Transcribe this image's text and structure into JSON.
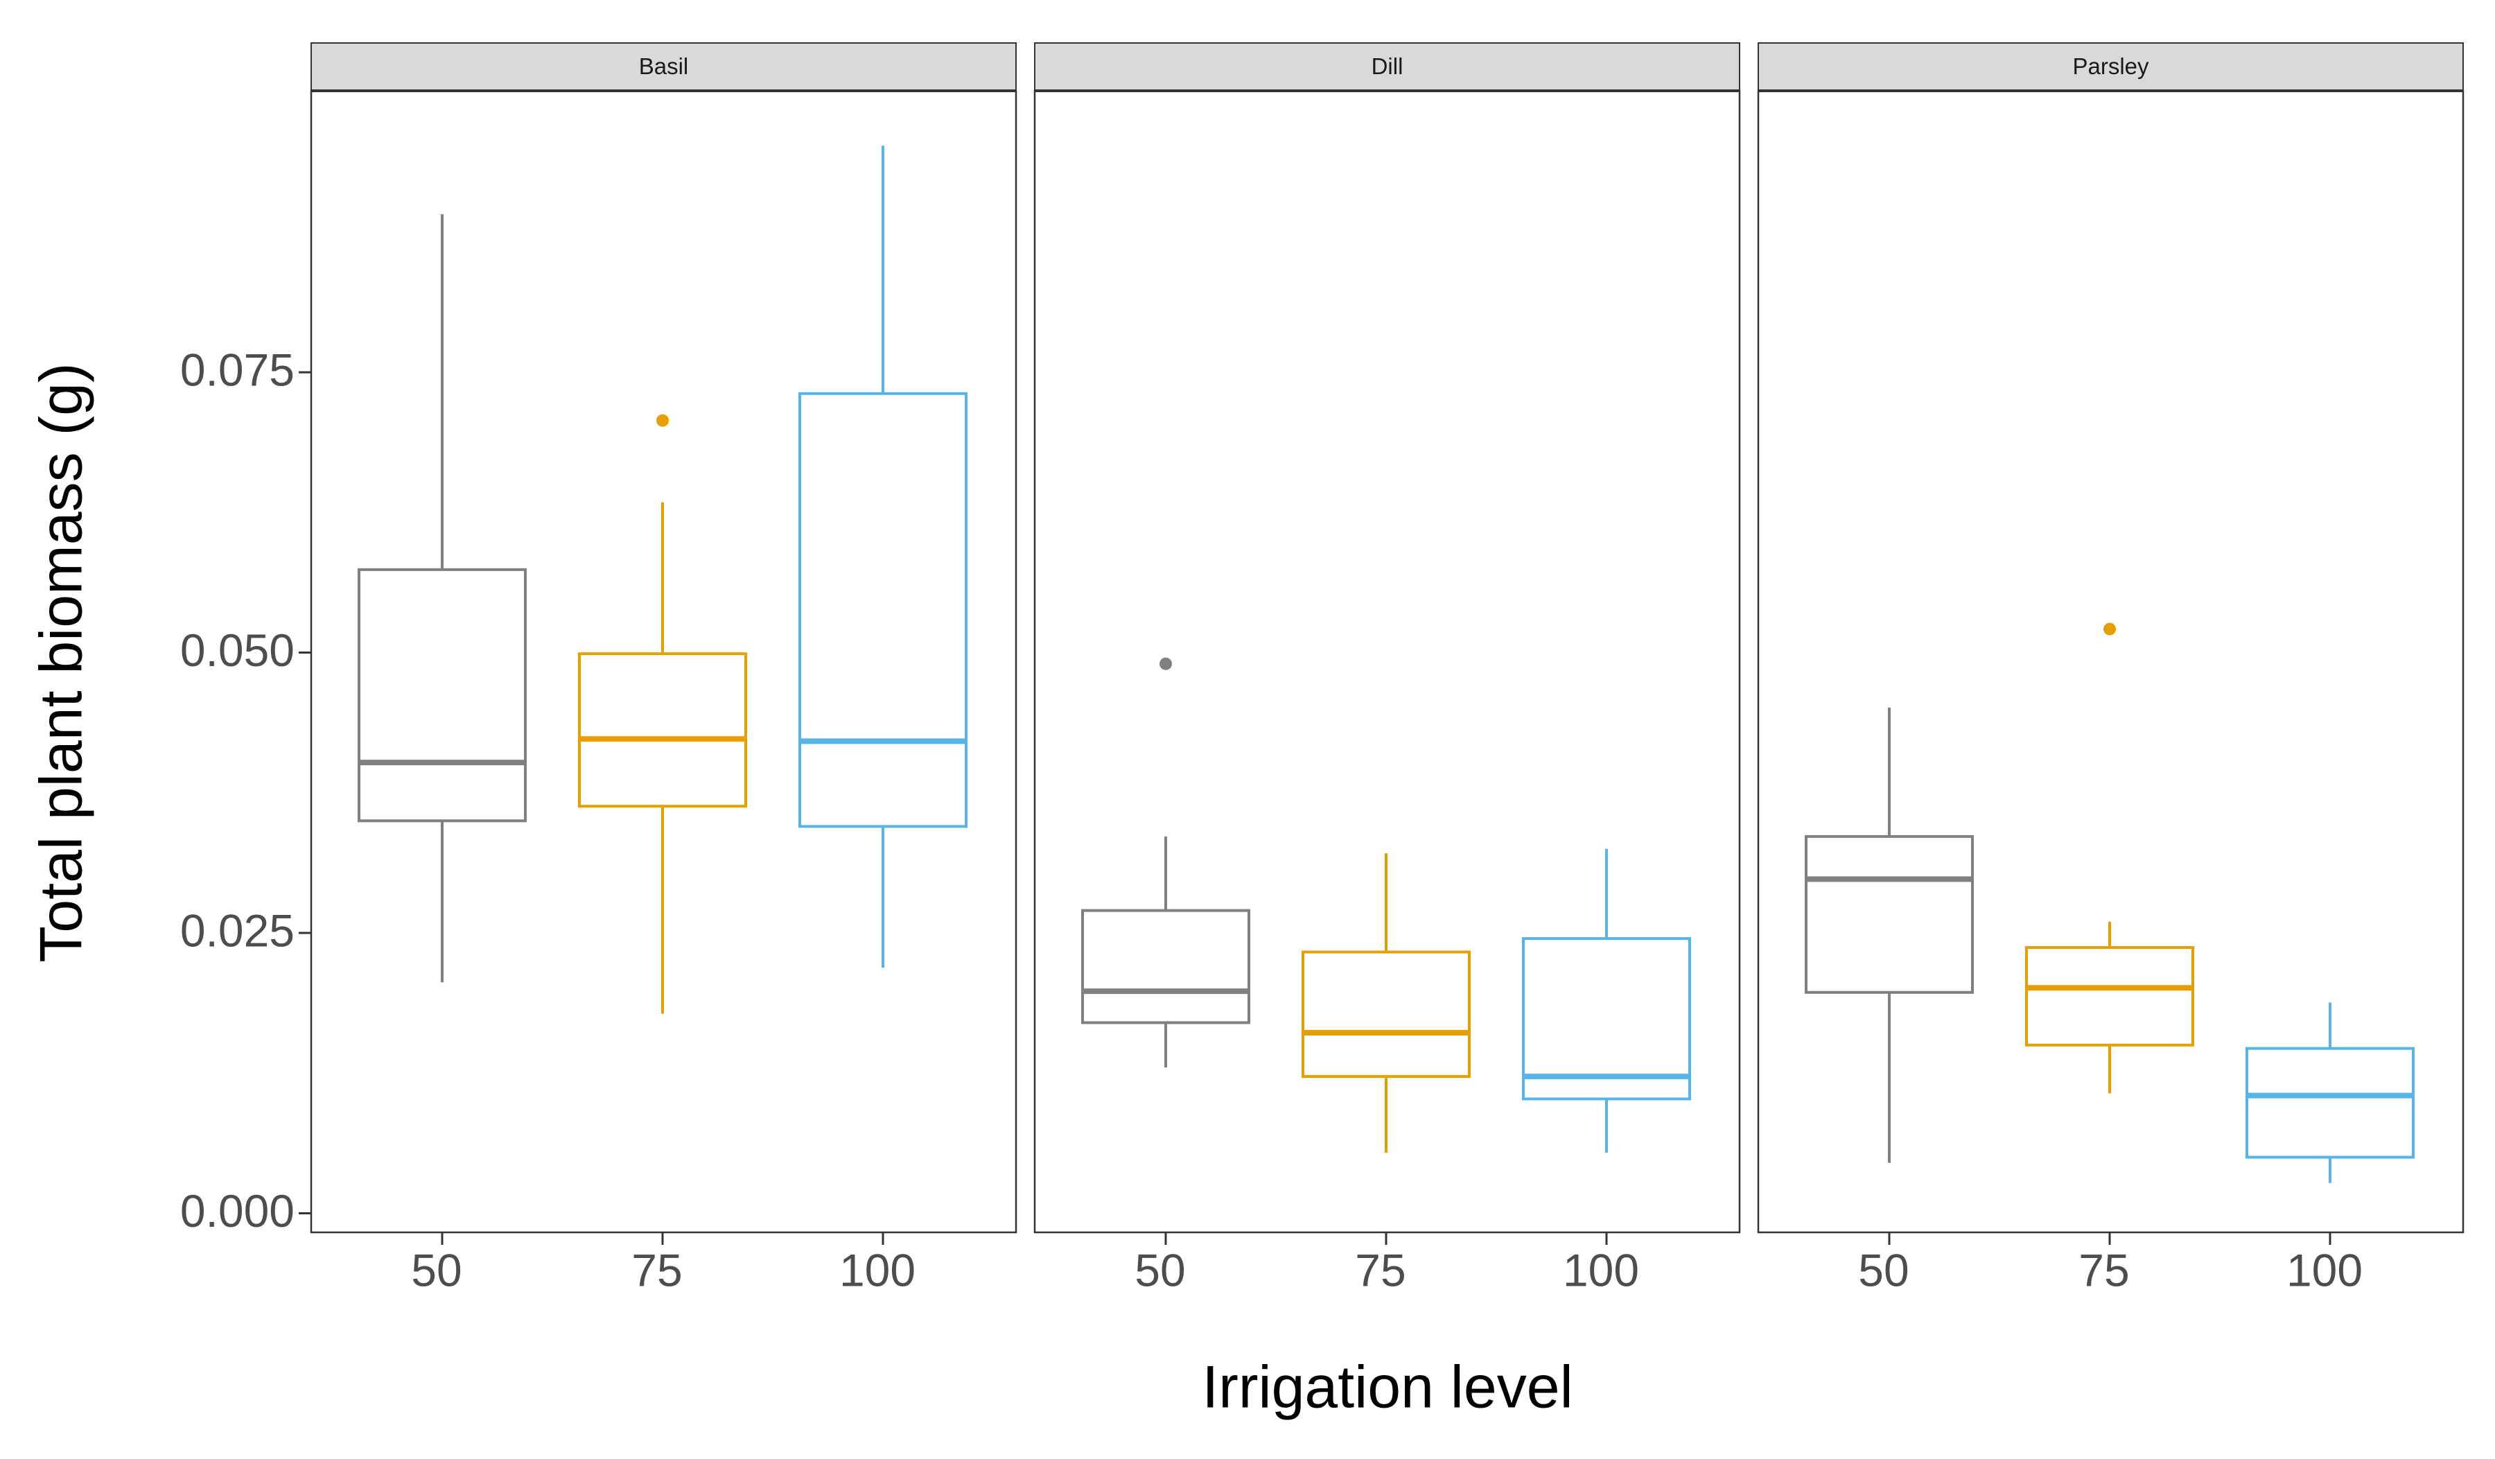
{
  "chart_data": {
    "type": "boxplot",
    "facets": [
      "Basil",
      "Dill",
      "Parsley"
    ],
    "categories": [
      "50",
      "75",
      "100"
    ],
    "xlabel": "Irrigation level",
    "ylabel": "Total plant biomass (g)",
    "ylim": [
      -0.0017,
      0.1001
    ],
    "yticks": [
      0.0,
      0.025,
      0.05,
      0.075
    ],
    "ytick_labels": [
      "0.000",
      "0.025",
      "0.050",
      "0.075"
    ],
    "colors": {
      "50": "#808080",
      "75": "#E69F00",
      "100": "#56B4E9"
    },
    "grid": false,
    "legend": "none",
    "boxes": [
      {
        "facet": "Basil",
        "category": "50",
        "min": 0.0206,
        "q1": 0.035,
        "median": 0.0402,
        "q3": 0.0574,
        "max": 0.0891,
        "outliers": []
      },
      {
        "facet": "Basil",
        "category": "75",
        "min": 0.0178,
        "q1": 0.0363,
        "median": 0.0423,
        "q3": 0.0499,
        "max": 0.0634,
        "outliers": [
          0.0707
        ]
      },
      {
        "facet": "Basil",
        "category": "100",
        "min": 0.0219,
        "q1": 0.0345,
        "median": 0.0421,
        "q3": 0.0731,
        "max": 0.0952,
        "outliers": []
      },
      {
        "facet": "Dill",
        "category": "50",
        "min": 0.013,
        "q1": 0.017,
        "median": 0.0198,
        "q3": 0.027,
        "max": 0.0336,
        "outliers": [
          0.049
        ]
      },
      {
        "facet": "Dill",
        "category": "75",
        "min": 0.0054,
        "q1": 0.0122,
        "median": 0.0161,
        "q3": 0.0233,
        "max": 0.0321,
        "outliers": []
      },
      {
        "facet": "Dill",
        "category": "100",
        "min": 0.0054,
        "q1": 0.0102,
        "median": 0.0122,
        "q3": 0.0245,
        "max": 0.0325,
        "outliers": []
      },
      {
        "facet": "Parsley",
        "category": "50",
        "min": 0.0045,
        "q1": 0.0197,
        "median": 0.0298,
        "q3": 0.0336,
        "max": 0.0451,
        "outliers": []
      },
      {
        "facet": "Parsley",
        "category": "75",
        "min": 0.0107,
        "q1": 0.015,
        "median": 0.0201,
        "q3": 0.0237,
        "max": 0.026,
        "outliers": [
          0.0521
        ]
      },
      {
        "facet": "Parsley",
        "category": "100",
        "min": 0.0027,
        "q1": 0.005,
        "median": 0.0105,
        "q3": 0.0147,
        "max": 0.0188,
        "outliers": []
      }
    ]
  }
}
